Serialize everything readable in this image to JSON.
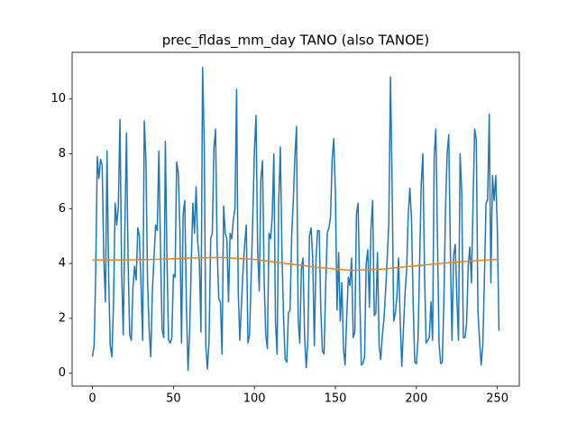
{
  "chart_data": {
    "type": "line",
    "title": "prec_fldas_mm_day TANO (also TANOE)",
    "xlim": [
      -12.55,
      263.55
    ],
    "xticks": [
      0,
      50,
      100,
      150,
      200,
      250
    ],
    "ylim": [
      -0.47,
      11.7
    ],
    "yticks": [
      0,
      2,
      4,
      6,
      8,
      10
    ],
    "series": [
      {
        "color": "#1f77b4",
        "x": [
          0,
          1,
          2,
          3,
          4,
          5,
          6,
          7,
          8,
          9,
          10,
          11,
          12,
          13,
          14,
          15,
          16,
          17,
          18,
          19,
          20,
          21,
          22,
          23,
          24,
          25,
          26,
          27,
          28,
          29,
          30,
          31,
          32,
          33,
          34,
          35,
          36,
          37,
          38,
          39,
          40,
          41,
          42,
          43,
          44,
          45,
          46,
          47,
          48,
          49,
          50,
          51,
          52,
          53,
          54,
          55,
          56,
          57,
          58,
          59,
          60,
          61,
          62,
          63,
          64,
          65,
          66,
          67,
          68,
          69,
          70,
          71,
          72,
          73,
          74,
          75,
          76,
          77,
          78,
          79,
          80,
          81,
          82,
          83,
          84,
          85,
          86,
          87,
          88,
          89,
          90,
          91,
          92,
          93,
          94,
          95,
          96,
          97,
          98,
          99,
          100,
          101,
          102,
          103,
          104,
          105,
          106,
          107,
          108,
          109,
          110,
          111,
          112,
          113,
          114,
          115,
          116,
          117,
          118,
          119,
          120,
          121,
          122,
          123,
          124,
          125,
          126,
          127,
          128,
          129,
          130,
          131,
          132,
          133,
          134,
          135,
          136,
          137,
          138,
          139,
          140,
          141,
          142,
          143,
          144,
          145,
          146,
          147,
          148,
          149,
          150,
          151,
          152,
          153,
          154,
          155,
          156,
          157,
          158,
          159,
          160,
          161,
          162,
          163,
          164,
          165,
          166,
          167,
          168,
          169,
          170,
          171,
          172,
          173,
          174,
          175,
          176,
          177,
          178,
          179,
          180,
          181,
          182,
          183,
          184,
          185,
          186,
          187,
          188,
          189,
          190,
          191,
          192,
          193,
          194,
          195,
          196,
          197,
          198,
          199,
          200,
          201,
          202,
          203,
          204,
          205,
          206,
          207,
          208,
          209,
          210,
          211,
          212,
          213,
          214,
          215,
          216,
          217,
          218,
          219,
          220,
          221,
          222,
          223,
          224,
          225,
          226,
          227,
          228,
          229,
          230,
          231,
          232,
          233,
          234,
          235,
          236,
          237,
          238,
          239,
          240,
          241,
          242,
          243,
          244,
          245,
          246,
          247,
          248,
          249,
          250,
          251
        ],
        "values": [
          0.6,
          1.0,
          3.6,
          7.9,
          7.1,
          7.8,
          7.6,
          4.2,
          2.6,
          8.1,
          3.5,
          1.0,
          0.6,
          2.5,
          6.2,
          5.4,
          6.1,
          9.25,
          3.8,
          1.4,
          5.2,
          8.75,
          4.1,
          1.4,
          1.2,
          3.1,
          3.9,
          3.4,
          5.3,
          5.0,
          3.2,
          1.2,
          9.2,
          7.8,
          3.4,
          1.6,
          0.6,
          3.0,
          4.2,
          5.4,
          5.2,
          8.1,
          4.6,
          1.6,
          1.3,
          8.45,
          4.2,
          1.2,
          1.1,
          1.3,
          3.6,
          3.5,
          7.7,
          7.3,
          5.2,
          1.1,
          5.8,
          6.3,
          2.5,
          0.1,
          1.5,
          4.0,
          6.2,
          5.1,
          6.8,
          4.8,
          4.1,
          1.5,
          11.15,
          8.5,
          1.0,
          0.15,
          1.2,
          4.9,
          5.1,
          8.2,
          8.9,
          4.5,
          2.7,
          2.6,
          0.7,
          6.1,
          5.1,
          4.9,
          2.6,
          5.1,
          4.9,
          5.6,
          6.0,
          10.35,
          3.0,
          1.2,
          2.5,
          3.8,
          4.7,
          5.4,
          1.1,
          1.4,
          3.5,
          5.7,
          8.1,
          9.4,
          4.5,
          3.0,
          7.1,
          7.75,
          3.4,
          1.4,
          0.9,
          5.1,
          4.9,
          5.7,
          8.0,
          1.9,
          0.7,
          6.2,
          8.25,
          4.4,
          2.0,
          0.5,
          0.4,
          2.2,
          2.3,
          5.0,
          6.3,
          7.9,
          9.0,
          2.0,
          1.1,
          3.8,
          4.2,
          1.3,
          0.2,
          1.2,
          5.0,
          5.3,
          4.2,
          1.0,
          4.1,
          5.2,
          5.2,
          2.3,
          0.8,
          0.7,
          3.2,
          5.1,
          5.3,
          5.7,
          7.8,
          8.55,
          6.6,
          2.3,
          4.4,
          1.9,
          3.3,
          0.9,
          0.3,
          2.1,
          3.5,
          3.2,
          4.2,
          1.3,
          1.5,
          5.8,
          6.2,
          3.0,
          0.3,
          0.35,
          0.6,
          4.0,
          4.5,
          2.4,
          5.3,
          6.3,
          2.1,
          2.2,
          4.4,
          1.0,
          0.5,
          1.4,
          2.0,
          3.0,
          4.2,
          5.5,
          10.8,
          7.0,
          1.9,
          2.2,
          2.8,
          4.2,
          1.9,
          0.25,
          1.6,
          2.9,
          3.8,
          5.8,
          6.75,
          5.6,
          2.6,
          0.4,
          0.35,
          1.2,
          4.0,
          6.9,
          8.0,
          3.8,
          1.1,
          1.2,
          1.3,
          2.6,
          1.2,
          7.9,
          8.9,
          5.0,
          1.1,
          0.35,
          0.4,
          2.7,
          6.0,
          8.0,
          8.7,
          4.4,
          1.2,
          4.3,
          4.7,
          2.7,
          1.2,
          8.0,
          6.6,
          1.3,
          1.3,
          1.8,
          3.9,
          4.6,
          3.3,
          6.2,
          8.9,
          8.5,
          2.3,
          1.2,
          0.3,
          1.0,
          3.4,
          6.2,
          6.3,
          9.45,
          3.3,
          7.2,
          6.3,
          7.2,
          5.2,
          1.55
        ]
      },
      {
        "color": "#ff7f0e",
        "x": [
          0,
          20,
          40,
          60,
          80,
          100,
          120,
          140,
          160,
          180,
          200,
          220,
          240,
          251
        ],
        "values": [
          4.13,
          4.13,
          4.15,
          4.2,
          4.22,
          4.15,
          4.0,
          3.85,
          3.75,
          3.8,
          3.92,
          4.03,
          4.12,
          4.15
        ]
      }
    ]
  }
}
